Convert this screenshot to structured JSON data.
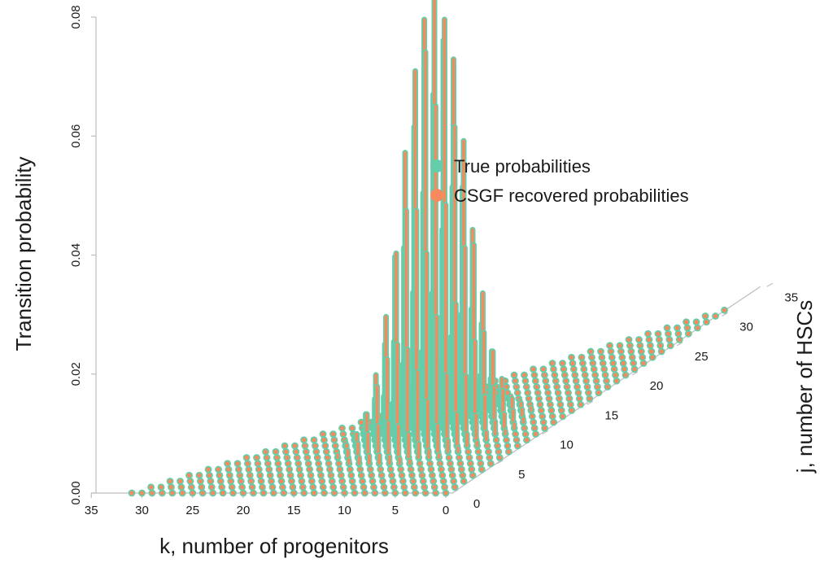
{
  "chart_data": {
    "type": "3d-stem",
    "title": "",
    "zlabel": "Transition probability",
    "xlabel": "k, number of progenitors",
    "ylabel": "j, number of HSCs",
    "zlim": [
      0,
      0.08
    ],
    "xlim": [
      0,
      35
    ],
    "ylim": [
      0,
      35
    ],
    "z_ticks": [
      "0.00",
      "0.02",
      "0.04",
      "0.06",
      "0.08"
    ],
    "x_ticks": [
      "35",
      "30",
      "25",
      "20",
      "15",
      "10",
      "5",
      "0"
    ],
    "y_ticks": [
      "0",
      "5",
      "10",
      "15",
      "20",
      "25",
      "30",
      "35"
    ],
    "grid": "triangular lattice k + j <= 31",
    "distribution": {
      "peak_k": 10,
      "peak_j": 10,
      "peak_value": 0.077
    },
    "legend_position": "top-right",
    "series": [
      {
        "name": "True probabilities",
        "color": "#66cdaa"
      },
      {
        "name": "CSGF recovered probabilities",
        "color": "#f78a5c"
      }
    ]
  }
}
